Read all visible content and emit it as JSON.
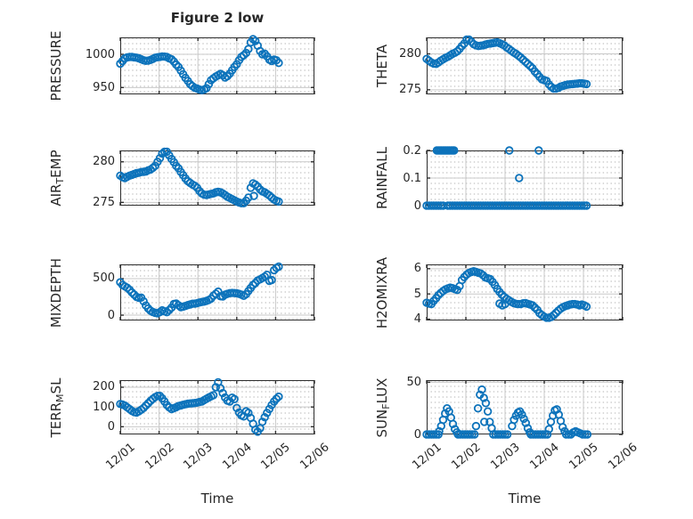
{
  "title": "Figure 2 low",
  "x_axis": {
    "label": "Time",
    "tick_labels": [
      "12/01",
      "12/02",
      "12/03",
      "12/04",
      "12/05",
      "12/06"
    ],
    "xlim": [
      0,
      5
    ]
  },
  "colors": {
    "marker": "#0d73bb",
    "axis": "#2e2e2e",
    "grid": "#c9c9c9",
    "text": "#262626"
  },
  "chart_data": [
    {
      "type": "scatter",
      "name": "PRESSURE",
      "ylabel_parts": [
        {
          "text": "PRESSURE"
        }
      ],
      "yticks": [
        {
          "v": 950,
          "label": "950"
        },
        {
          "v": 1000,
          "label": "1000"
        }
      ],
      "ylim": [
        939.7,
        1025.5
      ],
      "segments": [
        {
          "t0": 0,
          "dt": 0.06,
          "values": [
            986,
            990,
            994,
            995.5,
            996,
            996,
            995.5,
            995,
            994,
            992.5,
            991,
            990.3,
            990.5,
            991.6,
            993,
            995,
            995.6,
            996.2,
            996.8,
            996.6,
            996,
            994,
            992.5,
            989,
            984.5,
            981,
            975.5,
            970,
            964.5,
            960,
            955,
            952,
            949.5,
            948.5,
            947,
            946,
            947,
            949,
            955,
            961,
            964,
            966.5,
            968.5,
            970.5,
            968.5,
            965,
            967,
            971,
            976,
            981,
            985,
            991,
            996,
            998.5,
            1002,
            1008,
            1018,
            1023,
            1020,
            1013,
            1005,
            1000,
            1001,
            997,
            992,
            990,
            992,
            991,
            987
          ]
        }
      ]
    },
    {
      "type": "scatter",
      "name": "THETA",
      "ylabel_parts": [
        {
          "text": "THETA"
        }
      ],
      "yticks": [
        {
          "v": 275,
          "label": "275"
        },
        {
          "v": 280,
          "label": "280"
        }
      ],
      "ylim": [
        274.36,
        282.3
      ],
      "segments": [
        {
          "t0": 0,
          "dt": 0.06,
          "values": [
            279.3,
            279.05,
            278.8,
            278.65,
            278.6,
            278.8,
            279.05,
            279.25,
            279.45,
            279.6,
            279.8,
            280,
            280.15,
            280.35,
            280.7,
            281.1,
            281.45,
            282,
            282,
            281.7,
            281.35,
            281.2,
            281.1,
            281.15,
            281.2,
            281.3,
            281.4,
            281.45,
            281.5,
            281.55,
            281.6,
            281.5,
            281.35,
            281.2,
            280.9,
            280.7,
            280.45,
            280.2,
            280,
            279.75,
            279.5,
            279.2,
            278.9,
            278.6,
            278.3,
            278,
            277.55,
            277.2,
            276.8,
            276.45,
            276.35,
            276.25,
            275.75,
            275.4,
            275.15,
            275.15,
            275.25,
            275.45,
            275.55,
            275.65,
            275.72,
            275.76,
            275.8,
            275.83,
            275.86,
            275.9,
            275.9,
            275.85,
            275.8
          ]
        }
      ]
    },
    {
      "type": "scatter",
      "name": "AIR_TEMP",
      "ylabel_parts": [
        {
          "text": "AIR"
        },
        {
          "text": "T",
          "sub": true
        },
        {
          "text": "EMP"
        }
      ],
      "yticks": [
        {
          "v": 275,
          "label": "275"
        },
        {
          "v": 280,
          "label": "280"
        }
      ],
      "ylim": [
        274.6,
        281.4
      ],
      "segments": [
        {
          "t0": 0,
          "dt": 0.06,
          "values": [
            278.3,
            278.1,
            278,
            278.15,
            278.3,
            278.4,
            278.5,
            278.6,
            278.65,
            278.73,
            278.77,
            278.8,
            278.95,
            279.05,
            279.25,
            279.5,
            280,
            280.45,
            281,
            281.25,
            281.25,
            280.8,
            280.35,
            279.95,
            279.5,
            279.2,
            278.75,
            278.35,
            277.95,
            277.6,
            277.4,
            277.2,
            277.05,
            276.8,
            276.4,
            276.1,
            275.95,
            275.92,
            275.98,
            276.05,
            276.1,
            276.25,
            276.3,
            276.25,
            276.1,
            275.9,
            275.7,
            275.55,
            275.4,
            275.25,
            275.1,
            275,
            274.9,
            274.9,
            275.2,
            275.6,
            276.8,
            277.35,
            277.2,
            276.95,
            276.6,
            276.35,
            276.25,
            276.05,
            275.85,
            275.6,
            275.35,
            275.2,
            275.1
          ]
        },
        {
          "t0": 3.44,
          "dt": 1,
          "values": [
            275.8
          ]
        }
      ]
    },
    {
      "type": "scatter",
      "name": "RAINFALL",
      "ylabel_parts": [
        {
          "text": "RAINFALL"
        }
      ],
      "yticks": [
        {
          "v": 0,
          "label": "0"
        },
        {
          "v": 0.1,
          "label": "0.1"
        },
        {
          "v": 0.2,
          "label": "0.2"
        }
      ],
      "ylim": [
        0,
        0.2
      ],
      "segments": [
        {
          "t0": 0,
          "dt": 0.06,
          "values": [
            0,
            0,
            0,
            0,
            0,
            0,
            0,
            0
          ]
        },
        {
          "t0": 0.26,
          "dt": 0.04,
          "values": [
            0.2,
            0.2,
            0.2,
            0.2,
            0.2,
            0.2,
            0.2,
            0.2,
            0.2,
            0.2,
            0.2,
            0.2
          ]
        },
        {
          "t0": 0.54,
          "dt": 0.06,
          "values": [
            0,
            0,
            0,
            0,
            0,
            0,
            0,
            0,
            0,
            0,
            0,
            0,
            0,
            0,
            0,
            0,
            0,
            0,
            0,
            0,
            0,
            0,
            0,
            0,
            0,
            0,
            0,
            0,
            0,
            0,
            0,
            0,
            0,
            0,
            0,
            0,
            0,
            0,
            0,
            0,
            0,
            0,
            0,
            0,
            0,
            0,
            0,
            0,
            0,
            0,
            0,
            0,
            0,
            0,
            0,
            0,
            0,
            0,
            0,
            0
          ]
        },
        {
          "t0": 2.11,
          "dt": 1,
          "values": [
            0.2
          ]
        },
        {
          "t0": 2.86,
          "dt": 1,
          "values": [
            0.2
          ]
        },
        {
          "t0": 2.36,
          "dt": 1,
          "values": [
            0.1
          ]
        }
      ]
    },
    {
      "type": "scatter",
      "name": "MIXDEPTH",
      "ylabel_parts": [
        {
          "text": "MIXDEPTH"
        }
      ],
      "yticks": [
        {
          "v": 0,
          "label": "0"
        },
        {
          "v": 500,
          "label": "500"
        }
      ],
      "ylim": [
        -73,
        695
      ],
      "segments": [
        {
          "t0": 0,
          "dt": 0.06,
          "values": [
            450,
            412,
            394,
            376,
            346,
            310,
            280,
            250,
            238,
            240,
            190,
            132,
            91,
            61,
            43,
            32,
            26,
            42,
            66,
            52,
            40,
            70,
            102,
            153,
            159,
            135,
            110,
            117,
            126,
            138,
            147,
            156,
            158,
            164,
            173,
            180,
            186,
            196,
            209,
            227,
            266,
            294,
            322,
            258,
            256,
            280,
            292,
            301,
            304,
            303,
            300,
            291,
            282,
            265,
            288,
            330,
            372,
            414,
            440,
            474,
            490,
            508,
            528,
            552,
            470,
            480,
            616,
            648,
            665
          ]
        }
      ]
    },
    {
      "type": "scatter",
      "name": "H2OMIXRA",
      "ylabel_parts": [
        {
          "text": "H2OMIXRA"
        }
      ],
      "yticks": [
        {
          "v": 4,
          "label": "4"
        },
        {
          "v": 5,
          "label": "5"
        },
        {
          "v": 6,
          "label": "6"
        }
      ],
      "ylim": [
        3.95,
        6.17
      ],
      "segments": [
        {
          "t0": 0,
          "dt": 0.06,
          "values": [
            4.65,
            4.62,
            4.6,
            4.72,
            4.83,
            4.95,
            5.04,
            5.12,
            5.18,
            5.22,
            5.25,
            5.23,
            5.19,
            5.16,
            5.31,
            5.55,
            5.67,
            5.77,
            5.83,
            5.87,
            5.9,
            5.87,
            5.84,
            5.81,
            5.74,
            5.65,
            5.62,
            5.59,
            5.48,
            5.35,
            5.2,
            5.08,
            4.97,
            4.88,
            4.81,
            4.75,
            4.69,
            4.64,
            4.61,
            4.6,
            4.6,
            4.63,
            4.64,
            4.61,
            4.58,
            4.55,
            4.46,
            4.37,
            4.24,
            4.16,
            4.1,
            4.06,
            4.06,
            4.09,
            4.16,
            4.25,
            4.34,
            4.42,
            4.48,
            4.52,
            4.55,
            4.58,
            4.6,
            4.6,
            4.58,
            4.55,
            4.58,
            4.55,
            4.5
          ]
        },
        {
          "t0": 1.86,
          "dt": 0.07,
          "values": [
            4.62,
            4.55,
            4.6
          ]
        }
      ]
    },
    {
      "type": "scatter",
      "name": "TERR_MSL",
      "ylabel_parts": [
        {
          "text": "TERR"
        },
        {
          "text": "M",
          "sub": true
        },
        {
          "text": "SL"
        }
      ],
      "yticks": [
        {
          "v": 0,
          "label": "0"
        },
        {
          "v": 100,
          "label": "100"
        },
        {
          "v": 200,
          "label": "200"
        }
      ],
      "ylim": [
        -39,
        236
      ],
      "segments": [
        {
          "t0": 0,
          "dt": 0.06,
          "values": [
            115,
            112,
            107,
            98,
            89,
            80,
            74,
            72,
            78,
            86,
            95,
            107,
            119,
            131,
            141,
            150,
            156,
            156,
            144,
            128,
            110,
            98,
            89,
            94,
            99,
            105,
            108,
            111,
            114,
            117,
            118,
            119,
            120,
            122,
            125,
            128,
            135,
            142,
            148,
            154,
            160,
            200,
            225,
            195,
            170,
            148,
            132,
            128,
            147,
            140,
            95,
            72,
            58,
            52,
            78,
            70,
            45,
            15,
            -15,
            -25,
            -8,
            25,
            48,
            70,
            90,
            110,
            128,
            142,
            152
          ]
        }
      ]
    },
    {
      "type": "scatter",
      "name": "SUN_FLUX",
      "ylabel_parts": [
        {
          "text": "SUN"
        },
        {
          "text": "F",
          "sub": true
        },
        {
          "text": "LUX"
        }
      ],
      "yticks": [
        {
          "v": 0,
          "label": "0"
        },
        {
          "v": 50,
          "label": "50"
        }
      ],
      "ylim": [
        0,
        52
      ],
      "segments": [
        {
          "t0": 0,
          "dt": 0.06,
          "values": [
            0,
            0,
            0,
            0,
            0,
            0
          ]
        },
        {
          "t0": 0.32,
          "dt": 0.05,
          "values": [
            3,
            8,
            14,
            20,
            25,
            22,
            16,
            10,
            5,
            2
          ]
        },
        {
          "t0": 0.8,
          "dt": 0.06,
          "values": [
            0,
            0,
            0,
            0,
            0,
            0,
            0,
            0
          ]
        },
        {
          "t0": 1.26,
          "dt": 0.05,
          "values": [
            8,
            25,
            38,
            43,
            35,
            30,
            22,
            12,
            6
          ]
        },
        {
          "t0": 1.47,
          "dt": 1,
          "values": [
            12
          ]
        },
        {
          "t0": 1.7,
          "dt": 0.06,
          "values": [
            0,
            0,
            0,
            0,
            0,
            0,
            0
          ]
        },
        {
          "t0": 2.18,
          "dt": 0.05,
          "values": [
            8,
            14,
            18,
            21,
            22,
            19,
            15,
            11,
            6,
            2
          ]
        },
        {
          "t0": 2.66,
          "dt": 0.06,
          "values": [
            0,
            0,
            0,
            0,
            0,
            0,
            0,
            0
          ]
        },
        {
          "t0": 3.12,
          "dt": 0.05,
          "values": [
            5,
            12,
            18,
            23,
            24,
            19,
            13,
            7,
            3
          ]
        },
        {
          "t0": 3.56,
          "dt": 0.06,
          "values": [
            0,
            0,
            0,
            2,
            3,
            2,
            1,
            0,
            0,
            0
          ]
        }
      ]
    }
  ]
}
